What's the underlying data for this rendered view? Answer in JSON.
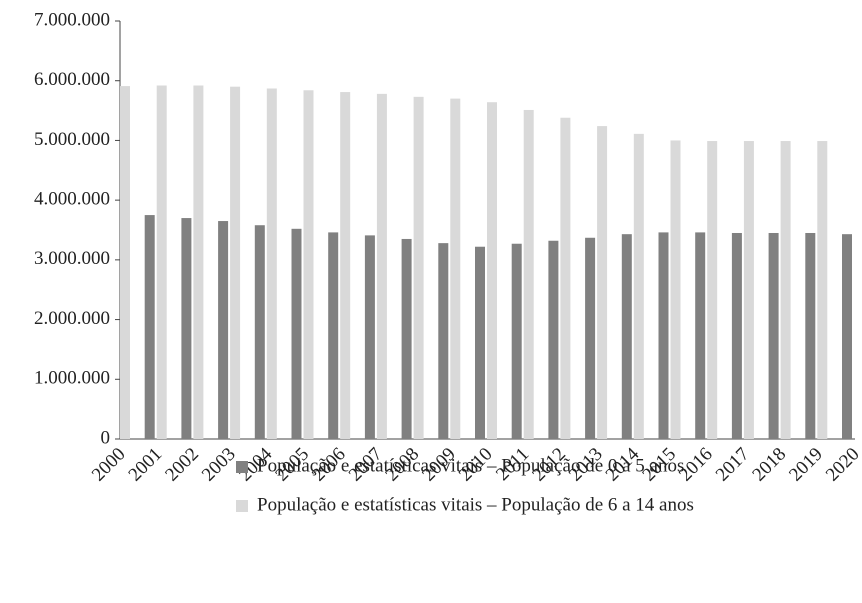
{
  "chart_data": {
    "type": "bar",
    "categories": [
      "2000",
      "2001",
      "2002",
      "2003",
      "2004",
      "2005",
      "2006",
      "2007",
      "2008",
      "2009",
      "2010",
      "2011",
      "2012",
      "2013",
      "2014",
      "2015",
      "2016",
      "2017",
      "2018",
      "2019",
      "2020"
    ],
    "series": [
      {
        "name": "População e estatísticas vitais – População de 0 a 5 anos",
        "color": "#808080",
        "values": [
          null,
          3750000,
          3700000,
          3650000,
          3580000,
          3520000,
          3460000,
          3410000,
          3350000,
          3280000,
          3220000,
          3270000,
          3320000,
          3370000,
          3430000,
          3460000,
          3460000,
          3450000,
          3450000,
          3450000,
          3430000
        ]
      },
      {
        "name": "População e estatísticas vitais – População de 6 a 14 anos",
        "color": "#d9d9d9",
        "values": [
          5910000,
          5920000,
          5920000,
          5900000,
          5870000,
          5840000,
          5810000,
          5780000,
          5730000,
          5700000,
          5640000,
          5510000,
          5380000,
          5240000,
          5110000,
          5000000,
          4990000,
          4990000,
          4990000,
          4990000,
          null
        ]
      }
    ],
    "ylim": [
      0,
      7000000
    ],
    "yticks": [
      0,
      {
        "value": 1000000,
        "label": "1.000.000"
      },
      {
        "value": 2000000,
        "label": "2.000.000"
      },
      {
        "value": 3000000,
        "label": "3.000.000"
      },
      {
        "value": 4000000,
        "label": "4.000.000"
      },
      {
        "value": 5000000,
        "label": "5.000.000"
      },
      {
        "value": 6000000,
        "label": "6.000.000"
      },
      {
        "value": 7000000,
        "label": "7.000.000"
      }
    ],
    "grid": false
  }
}
